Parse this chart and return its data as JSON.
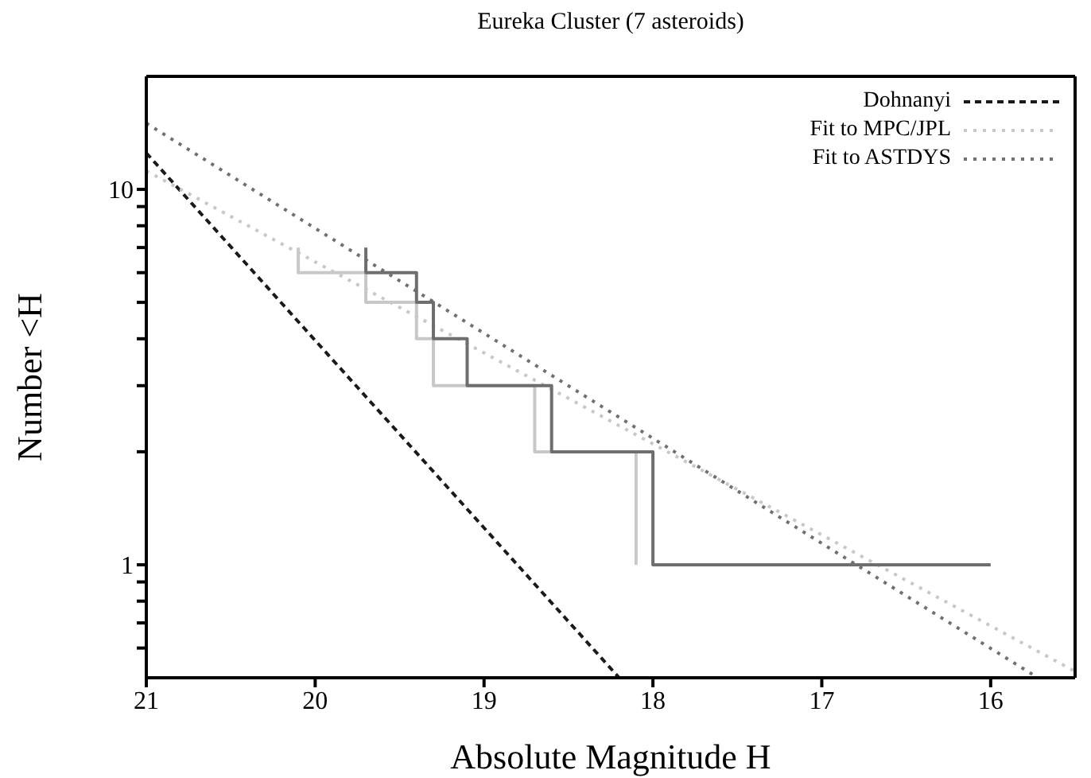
{
  "chart_data": {
    "type": "line",
    "title": "Eureka Cluster (7 asteroids)",
    "xlabel": "Absolute Magnitude H",
    "ylabel": "Number <H",
    "xlim": [
      21,
      15.5
    ],
    "xticks": [
      21,
      20,
      19,
      18,
      17,
      16
    ],
    "ylim": [
      0.5,
      20
    ],
    "log": "y",
    "yticks": [
      {
        "value": 0.6,
        "label": null
      },
      {
        "value": 0.7,
        "label": null
      },
      {
        "value": 0.8,
        "label": null
      },
      {
        "value": 0.9,
        "label": null
      },
      1,
      {
        "value": 2,
        "label": null
      },
      {
        "value": 3,
        "label": null
      },
      {
        "value": 4,
        "label": null
      },
      {
        "value": 5,
        "label": null
      },
      {
        "value": 6,
        "label": null
      },
      {
        "value": 7,
        "label": null
      },
      {
        "value": 8,
        "label": null
      },
      {
        "value": 9,
        "label": null
      },
      10
    ],
    "grid": false,
    "legend": "top right",
    "marker": "none",
    "series": [
      {
        "name": "Dohnanyi",
        "color": "#1a1a1a",
        "line_style": "dashed",
        "x": [
          21,
          18.2
        ],
        "values": [
          12.5,
          0.5
        ]
      },
      {
        "name": "Fit to MPC/JPL",
        "color": "#c8c8c8",
        "line_style": "dotted",
        "x": [
          21,
          15.5
        ],
        "values": [
          11.2,
          0.52
        ]
      },
      {
        "name": "Fit to ASTDYS",
        "color": "#707070",
        "line_style": "dotted",
        "x": [
          21,
          15.72
        ],
        "values": [
          15,
          0.5
        ]
      },
      {
        "color": "#c8c8c8",
        "line_style": "solid",
        "x": [
          20.1,
          20.1,
          19.7,
          19.7,
          19.4,
          19.4,
          19.3,
          19.3,
          18.7,
          18.7,
          18.1,
          18.1
        ],
        "values": [
          7,
          6,
          6,
          5,
          5,
          4,
          4,
          3,
          3,
          2,
          2,
          1
        ]
      },
      {
        "color": "#6e6e6e",
        "line_style": "solid",
        "x": [
          19.7,
          19.7,
          19.4,
          19.4,
          19.3,
          19.3,
          19.1,
          19.1,
          18.6,
          18.6,
          18,
          18,
          16
        ],
        "values": [
          7,
          6,
          6,
          5,
          5,
          4,
          4,
          3,
          3,
          2,
          2,
          1,
          1
        ]
      }
    ]
  }
}
